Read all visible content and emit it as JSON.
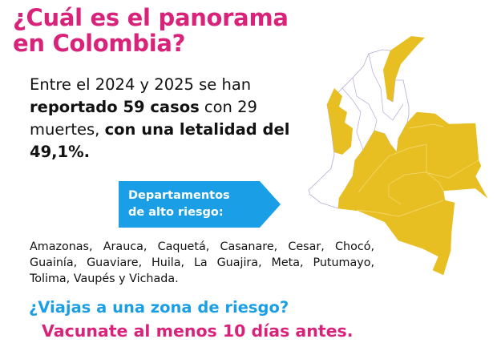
{
  "title": {
    "line1": "¿Cuál es el panorama",
    "line2": "en Colombia?"
  },
  "summary": {
    "p1": "Entre el 2024 y  2025 se han ",
    "b1": "reportado 59 casos",
    "p2": " con 29 muertes, ",
    "b2": "con una letalidad del 49,1%."
  },
  "callout": {
    "line1": "Departamentos",
    "line2": "de alto riesgo:"
  },
  "departments": "Amazonas, Arauca, Caquetá, Casanare, Cesar, Chocó, Guainía, Guaviare, Huila, La Guajira, Meta, Putumayo, Tolima, Vaupés y Vichada.",
  "question": "¿Viajas a una zona de riesgo?",
  "cta": "Vacunate al menos 10 días antes.",
  "colors": {
    "pink": "#d9237b",
    "blue": "#1a9fe6",
    "risk_yellow": "#e8bf22",
    "map_border": "#b9a9d3"
  }
}
